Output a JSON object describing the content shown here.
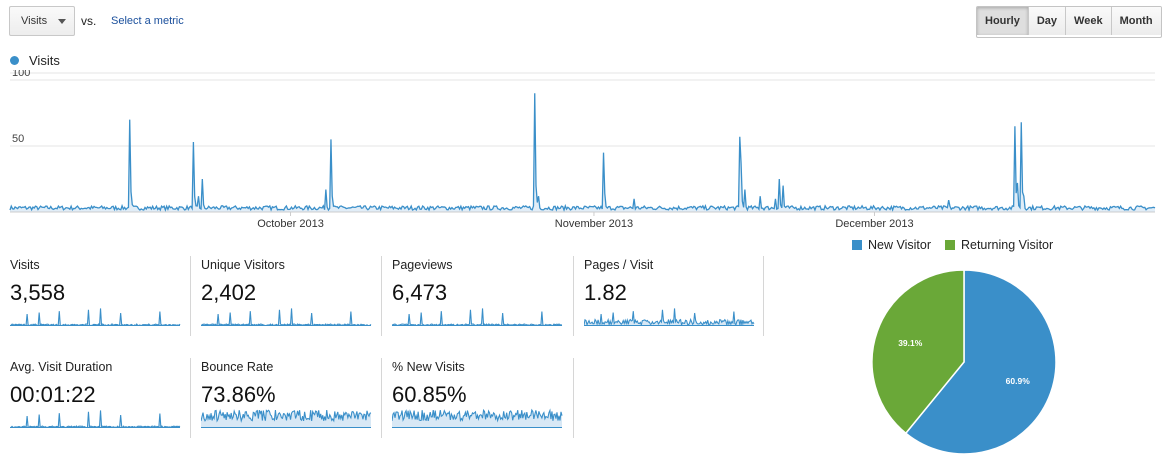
{
  "toolbar": {
    "metric": "Visits",
    "vs": "vs.",
    "select_metric": "Select a metric",
    "granularity": [
      {
        "label": "Hourly",
        "active": true
      },
      {
        "label": "Day",
        "active": false
      },
      {
        "label": "Week",
        "active": false
      },
      {
        "label": "Month",
        "active": false
      }
    ]
  },
  "chart_data": [
    {
      "type": "line",
      "series": [
        {
          "name": "Visits",
          "color": "#3a8fc9",
          "spikes": [
            [
              0.105,
              70
            ],
            [
              0.16,
              53
            ],
            [
              0.165,
              12
            ],
            [
              0.168,
              25
            ],
            [
              0.28,
              55
            ],
            [
              0.276,
              17
            ],
            [
              0.458,
              90
            ],
            [
              0.462,
              12
            ],
            [
              0.518,
              45
            ],
            [
              0.52,
              14
            ],
            [
              0.545,
              10
            ],
            [
              0.637,
              57
            ],
            [
              0.639,
              37
            ],
            [
              0.642,
              17
            ],
            [
              0.655,
              12
            ],
            [
              0.668,
              10
            ],
            [
              0.672,
              25
            ],
            [
              0.675,
              20
            ],
            [
              0.82,
              9
            ],
            [
              0.878,
              65
            ],
            [
              0.88,
              22
            ],
            [
              0.883,
              68
            ],
            [
              0.885,
              12
            ]
          ]
        }
      ],
      "x_ticks": [
        "October 2013",
        "November 2013",
        "December 2013"
      ],
      "y_ticks": [
        50,
        100
      ],
      "ylim": [
        0,
        100
      ],
      "grid": true
    },
    {
      "type": "pie",
      "legend": [
        "New Visitor",
        "Returning Visitor"
      ],
      "slices": [
        {
          "name": "New Visitor",
          "value": 60.9,
          "label": "60.9%",
          "color": "#3a8fc9"
        },
        {
          "name": "Returning Visitor",
          "value": 39.1,
          "label": "39.1%",
          "color": "#6aa838"
        }
      ]
    }
  ],
  "tiles": [
    {
      "label": "Visits",
      "value": "3,558",
      "spark": "spike"
    },
    {
      "label": "Unique Visitors",
      "value": "2,402",
      "spark": "spike"
    },
    {
      "label": "Pageviews",
      "value": "6,473",
      "spark": "spike"
    },
    {
      "label": "Pages / Visit",
      "value": "1.82",
      "spark": "noisy"
    },
    {
      "label": "Avg. Visit Duration",
      "value": "00:01:22",
      "spark": "spike"
    },
    {
      "label": "Bounce Rate",
      "value": "73.86%",
      "spark": "dense"
    },
    {
      "label": "% New Visits",
      "value": "60.85%",
      "spark": "dense"
    }
  ]
}
